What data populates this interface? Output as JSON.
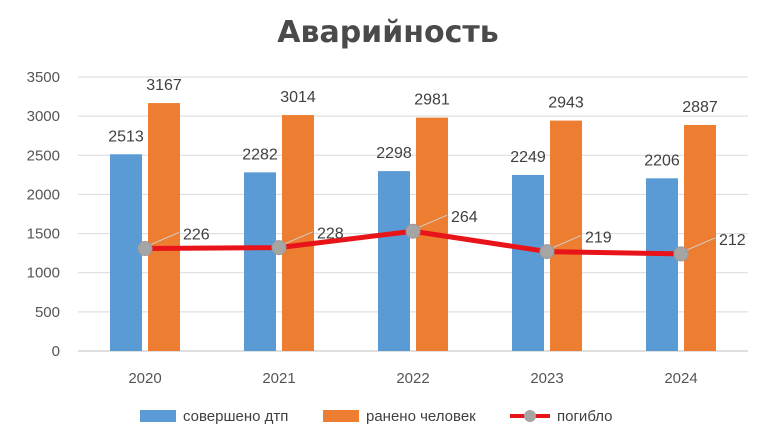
{
  "chart_data": {
    "type": "bar",
    "title": "Аварийность",
    "categories": [
      "2020",
      "2021",
      "2022",
      "2023",
      "2024"
    ],
    "ylim": [
      0,
      3500
    ],
    "yticks": [
      "0",
      "500",
      "1000",
      "1500",
      "2000",
      "2500",
      "3000",
      "3500"
    ],
    "legend_position": "bottom",
    "series": [
      {
        "name": "совершено дтп",
        "type": "bar",
        "color": "#5b9bd5",
        "values": [
          2513,
          2282,
          2298,
          2249,
          2206
        ],
        "labels": [
          "2513",
          "2282",
          "2298",
          "2249",
          "2206"
        ]
      },
      {
        "name": "ранено человек",
        "type": "bar",
        "color": "#ed7d31",
        "values": [
          3167,
          3014,
          2981,
          2943,
          2887
        ],
        "labels": [
          "3167",
          "3014",
          "2981",
          "2943",
          "2887"
        ]
      },
      {
        "name": "погибло",
        "type": "line",
        "color": "#e8141a",
        "marker_color": "#a5a5a5",
        "plot_values": [
          1310,
          1320,
          1530,
          1270,
          1240
        ],
        "labels": [
          "226",
          "228",
          "264",
          "219",
          "212"
        ]
      }
    ]
  }
}
